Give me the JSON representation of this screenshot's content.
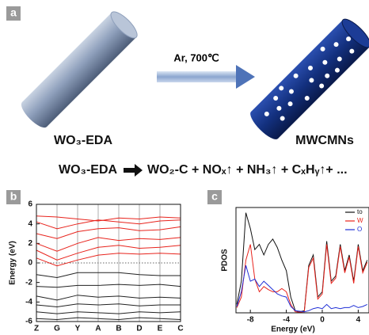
{
  "panels": {
    "a": "a",
    "b": "b",
    "c": "c"
  },
  "diagram": {
    "condition": "Ar, 700℃",
    "precursor": "WO₃-EDA",
    "product": "MWCMNs",
    "equation_left": "WO₃-EDA",
    "equation_right": "WO₂-C + NOₓ↑ + NH₃↑ + CₓHᵧ↑+ ..."
  },
  "chart_data": [
    {
      "type": "line",
      "ylabel": "Energy (eV)",
      "categories": [
        "Z",
        "G",
        "Y",
        "A",
        "B",
        "D",
        "E",
        "C"
      ],
      "ylim": [
        -6,
        6
      ],
      "yticks": [
        6,
        4,
        2,
        0,
        -2,
        -4,
        -6
      ],
      "grid": true,
      "hline": 0,
      "series": [
        {
          "color": "#e8231c",
          "values": [
            4.8,
            4.7,
            4.5,
            4.3,
            4.6,
            4.5,
            4.7,
            4.6
          ]
        },
        {
          "color": "#e8231c",
          "values": [
            4.2,
            3.5,
            4.0,
            4.4,
            4.2,
            4.0,
            4.3,
            4.4
          ]
        },
        {
          "color": "#e8231c",
          "values": [
            3.0,
            2.5,
            3.2,
            3.5,
            3.6,
            3.3,
            3.4,
            3.7
          ]
        },
        {
          "color": "#e8231c",
          "values": [
            2.0,
            1.2,
            2.0,
            2.6,
            2.3,
            2.5,
            2.4,
            2.6
          ]
        },
        {
          "color": "#e8231c",
          "values": [
            1.3,
            0.3,
            1.0,
            1.6,
            1.8,
            1.5,
            1.6,
            1.8
          ]
        },
        {
          "color": "#e8231c",
          "values": [
            0.5,
            -0.3,
            0.3,
            0.8,
            1.0,
            0.9,
            1.0,
            0.9
          ]
        },
        {
          "color": "#222222",
          "values": [
            -1.2,
            -1.5,
            -1.0,
            -1.0,
            -1.0,
            -1.2,
            -1.3,
            -1.3
          ]
        },
        {
          "color": "#222222",
          "values": [
            -2.4,
            -2.5,
            -2.3,
            -2.3,
            -2.2,
            -2.3,
            -2.2,
            -2.4
          ]
        },
        {
          "color": "#222222",
          "values": [
            -3.4,
            -3.8,
            -3.3,
            -3.5,
            -3.4,
            -3.6,
            -3.5,
            -3.6
          ]
        },
        {
          "color": "#222222",
          "values": [
            -4.3,
            -4.5,
            -4.2,
            -4.3,
            -4.2,
            -4.4,
            -4.3,
            -4.3
          ]
        },
        {
          "color": "#222222",
          "values": [
            -5.0,
            -5.2,
            -5.0,
            -5.1,
            -5.2,
            -5.0,
            -5.1,
            -5.0
          ]
        },
        {
          "color": "#222222",
          "values": [
            -5.7,
            -5.8,
            -5.6,
            -5.7,
            -5.8,
            -5.6,
            -5.7,
            -5.8
          ]
        }
      ]
    },
    {
      "type": "line",
      "xlabel": "Energy (eV)",
      "ylabel": "PDOS",
      "xlim": [
        -9.6,
        5.2
      ],
      "xticks": [
        -8,
        -4,
        0,
        4
      ],
      "ylim": [
        0,
        10
      ],
      "x": [
        -9.5,
        -9,
        -8.5,
        -8,
        -7.5,
        -7,
        -6.5,
        -6,
        -5.5,
        -5,
        -4.5,
        -4,
        -3.5,
        -3,
        -2.5,
        -2,
        -1.5,
        -1,
        -0.5,
        0,
        0.5,
        1,
        1.5,
        2,
        2.5,
        3,
        3.5,
        4,
        4.5,
        5
      ],
      "series": [
        {
          "name": "to",
          "color": "#111111",
          "values": [
            0.8,
            3,
            9.5,
            8,
            6,
            6.5,
            5.5,
            6.5,
            7,
            6.2,
            5,
            4,
            1.5,
            0.2,
            0.1,
            0.2,
            4.5,
            5.5,
            1.5,
            2,
            6.8,
            3,
            3.5,
            6.5,
            4,
            5.5,
            3,
            6.5,
            4,
            5
          ]
        },
        {
          "name": "W",
          "color": "#e8231c",
          "values": [
            0.5,
            1.5,
            5,
            6.5,
            3.2,
            2,
            2.5,
            2.2,
            2,
            2,
            2.3,
            2,
            0.8,
            0.1,
            0.05,
            0.1,
            4.3,
            5.2,
            1.3,
            1.8,
            6.5,
            2.8,
            3.3,
            6.3,
            3.8,
            5.3,
            2.8,
            6.3,
            3.8,
            4.8
          ]
        },
        {
          "name": "O",
          "color": "#1f2fd6",
          "values": [
            0.6,
            2,
            4.5,
            3,
            3.2,
            2.5,
            3,
            2.6,
            2.2,
            1.8,
            1.6,
            1.5,
            0.6,
            0.2,
            0.15,
            0.1,
            0.2,
            0.4,
            0.5,
            0.4,
            0.8,
            0.4,
            0.5,
            0.4,
            0.5,
            0.5,
            0.7,
            0.5,
            0.6,
            0.8
          ]
        }
      ]
    }
  ]
}
